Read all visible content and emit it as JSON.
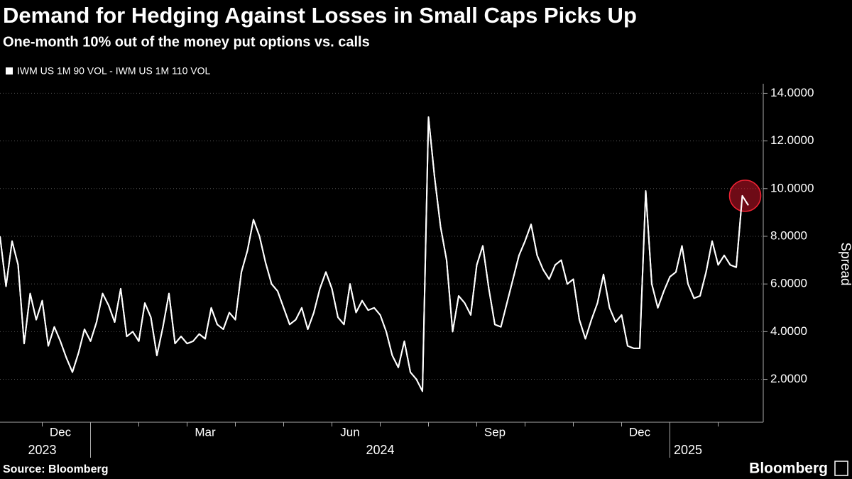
{
  "chart_data": {
    "type": "line",
    "title": "Demand for Hedging Against Losses in Small Caps Picks Up",
    "subtitle": "One-month 10% out of the money put options vs. calls",
    "ylabel": "Spread",
    "source": "Source: Bloomberg",
    "logo": "Bloomberg",
    "grid": true,
    "ylim": [
      0.2,
      14.4
    ],
    "yticks": [
      {
        "value": 2,
        "label": "2.0000"
      },
      {
        "value": 4,
        "label": "4.0000"
      },
      {
        "value": 6,
        "label": "6.0000"
      },
      {
        "value": 8,
        "label": "8.0000"
      },
      {
        "value": 10,
        "label": "10.0000"
      },
      {
        "value": 12,
        "label": "12.0000"
      },
      {
        "value": 14,
        "label": "14.0000"
      }
    ],
    "categories": [
      null,
      null,
      null,
      null,
      null,
      null,
      null,
      null,
      null,
      null,
      "Dec",
      null,
      null,
      null,
      null,
      null,
      null,
      null,
      null,
      null,
      null,
      null,
      null,
      null,
      null,
      null,
      null,
      null,
      null,
      null,
      null,
      null,
      null,
      null,
      "Mar",
      null,
      null,
      null,
      null,
      null,
      null,
      null,
      null,
      null,
      null,
      null,
      null,
      null,
      null,
      null,
      null,
      null,
      null,
      null,
      null,
      null,
      null,
      null,
      "Jun",
      null,
      null,
      null,
      null,
      null,
      null,
      null,
      null,
      null,
      null,
      null,
      null,
      null,
      null,
      null,
      null,
      null,
      null,
      null,
      null,
      null,
      null,
      null,
      "Sep",
      null,
      null,
      null,
      null,
      null,
      null,
      null,
      null,
      null,
      null,
      null,
      null,
      null,
      null,
      null,
      null,
      null,
      null,
      null,
      null,
      null,
      null,
      null,
      "Dec",
      null,
      null,
      null,
      null,
      null,
      null,
      null,
      null,
      null,
      null,
      null,
      null,
      null,
      null,
      null,
      null,
      null,
      null
    ],
    "years": [
      null,
      null,
      null,
      null,
      null,
      null,
      null,
      "2023",
      null,
      null,
      null,
      null,
      null,
      null,
      null,
      null,
      null,
      null,
      null,
      null,
      null,
      null,
      null,
      null,
      null,
      null,
      null,
      null,
      null,
      null,
      null,
      null,
      null,
      null,
      null,
      null,
      null,
      null,
      null,
      null,
      null,
      null,
      null,
      null,
      null,
      null,
      null,
      null,
      null,
      null,
      null,
      null,
      null,
      null,
      null,
      null,
      null,
      null,
      null,
      null,
      null,
      null,
      null,
      "2024",
      null,
      null,
      null,
      null,
      null,
      null,
      null,
      null,
      null,
      null,
      null,
      null,
      null,
      null,
      null,
      null,
      null,
      null,
      null,
      null,
      null,
      null,
      null,
      null,
      null,
      null,
      null,
      null,
      null,
      null,
      null,
      null,
      null,
      null,
      null,
      null,
      null,
      null,
      null,
      null,
      null,
      null,
      null,
      null,
      null,
      null,
      null,
      null,
      null,
      null,
      "2025",
      null,
      null,
      null,
      null,
      null,
      null
    ],
    "series": [
      {
        "name": "IWM US 1M 90 VOL - IWM US 1M 110 VOL",
        "color": "#ffffff",
        "values": [
          8.0,
          5.9,
          7.8,
          6.8,
          3.5,
          5.6,
          4.5,
          5.3,
          3.4,
          4.2,
          3.6,
          2.9,
          2.3,
          3.1,
          4.1,
          3.6,
          4.4,
          5.6,
          5.1,
          4.4,
          5.8,
          3.8,
          4.0,
          3.6,
          5.2,
          4.6,
          3.0,
          4.2,
          5.6,
          3.5,
          3.8,
          3.5,
          3.6,
          3.9,
          3.7,
          5.0,
          4.3,
          4.1,
          4.8,
          4.5,
          6.5,
          7.4,
          8.7,
          8.0,
          6.9,
          6.0,
          5.7,
          5.0,
          4.3,
          4.5,
          5.0,
          4.1,
          4.8,
          5.8,
          6.5,
          5.8,
          4.6,
          4.3,
          6.0,
          4.8,
          5.3,
          4.9,
          5.0,
          4.7,
          4.0,
          3.0,
          2.5,
          3.6,
          2.3,
          2.0,
          1.5,
          13.0,
          10.5,
          8.4,
          7.0,
          4.0,
          5.5,
          5.2,
          4.7,
          6.8,
          7.6,
          5.8,
          4.3,
          4.2,
          5.2,
          6.2,
          7.2,
          7.8,
          8.5,
          7.2,
          6.6,
          6.2,
          6.8,
          7.0,
          6.0,
          6.2,
          4.5,
          3.7,
          4.5,
          5.2,
          6.4,
          5.0,
          4.4,
          4.7,
          3.4,
          3.3,
          3.3,
          9.9,
          6.0,
          5.0,
          5.7,
          6.3,
          6.5,
          7.6,
          6.0,
          5.4,
          5.5,
          6.5,
          7.8,
          6.8,
          7.2,
          6.8,
          6.7,
          9.7,
          9.3
        ]
      }
    ]
  }
}
